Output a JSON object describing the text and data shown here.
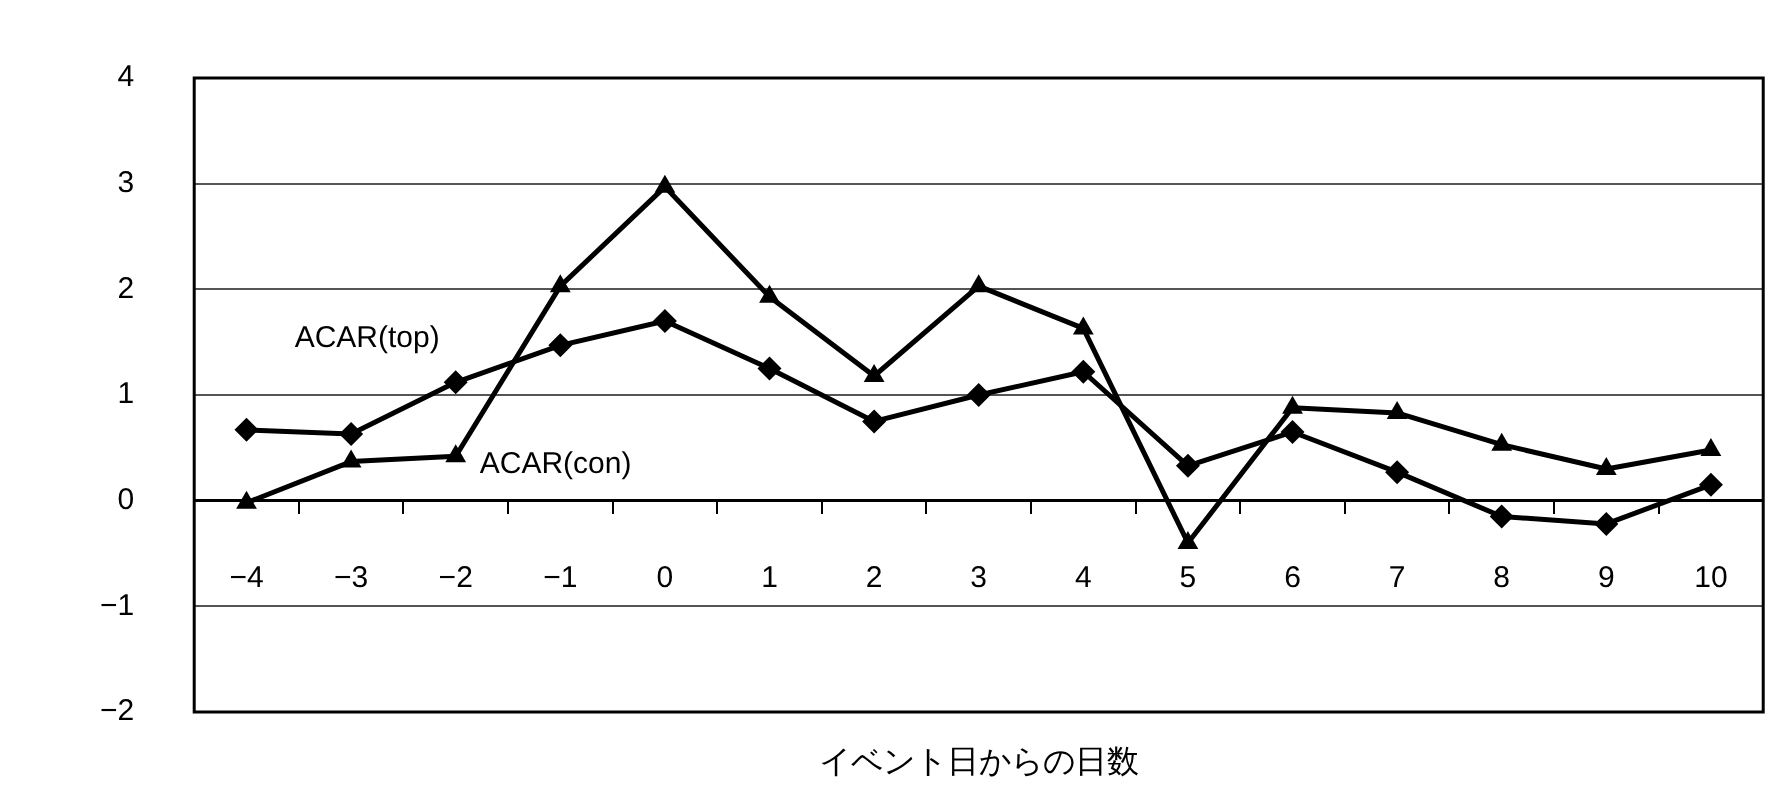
{
  "chart_data": {
    "type": "line",
    "xlabel": "イベント日からの日数",
    "categories": [
      "−4",
      "−3",
      "−2",
      "−1",
      "0",
      "1",
      "2",
      "3",
      "4",
      "5",
      "6",
      "7",
      "8",
      "9",
      "10"
    ],
    "series": [
      {
        "name": "ACAR(top)",
        "color": "#000000",
        "marker": "diamond",
        "values": [
          0.67,
          0.63,
          1.12,
          1.47,
          1.7,
          1.25,
          0.75,
          1.0,
          1.22,
          0.33,
          0.65,
          0.27,
          -0.15,
          -0.22,
          0.15
        ]
      },
      {
        "name": "ACAR(con)",
        "color": "#000000",
        "marker": "triangle",
        "values": [
          -0.02,
          0.37,
          0.42,
          2.03,
          2.97,
          1.93,
          1.18,
          2.03,
          1.63,
          -0.4,
          0.88,
          0.83,
          0.53,
          0.3,
          0.48
        ]
      }
    ],
    "ylim": [
      -2,
      4
    ],
    "yticks": [
      {
        "value": -2,
        "label": "−2"
      },
      {
        "value": -1,
        "label": "−1"
      },
      0,
      1,
      2,
      3,
      4
    ],
    "grid": "y",
    "legend": false,
    "line_style": "solid"
  }
}
